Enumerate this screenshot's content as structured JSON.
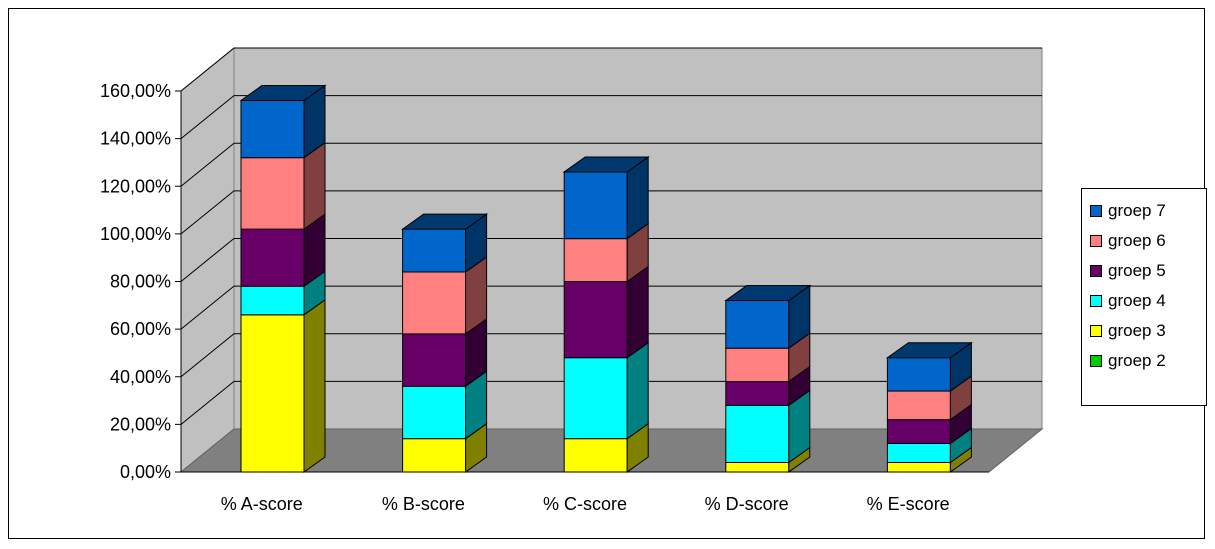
{
  "chart_data": {
    "type": "bar",
    "stacked": true,
    "three_d": true,
    "categories": [
      "% A-score",
      "% B-score",
      "% C-score",
      "% D-score",
      "% E-score"
    ],
    "y_ticks": [
      "0,00%",
      "20,00%",
      "40,00%",
      "60,00%",
      "80,00%",
      "100,00%",
      "120,00%",
      "140,00%",
      "160,00%"
    ],
    "ylim": [
      0,
      160
    ],
    "grid": true,
    "legend_position": "right",
    "series": [
      {
        "name": "groep 2",
        "color": "#00cc00",
        "values": [
          0,
          0,
          0,
          0,
          0
        ]
      },
      {
        "name": "groep 3",
        "color": "#ffff00",
        "values": [
          66,
          14,
          14,
          4,
          4
        ]
      },
      {
        "name": "groep 4",
        "color": "#00ffff",
        "values": [
          12,
          22,
          34,
          24,
          8
        ]
      },
      {
        "name": "groep 5",
        "color": "#660066",
        "values": [
          24,
          22,
          32,
          10,
          10
        ]
      },
      {
        "name": "groep 6",
        "color": "#ff8080",
        "values": [
          30,
          26,
          18,
          14,
          12
        ]
      },
      {
        "name": "groep 7",
        "color": "#0066cc",
        "values": [
          24,
          18,
          28,
          20,
          14
        ]
      }
    ]
  }
}
